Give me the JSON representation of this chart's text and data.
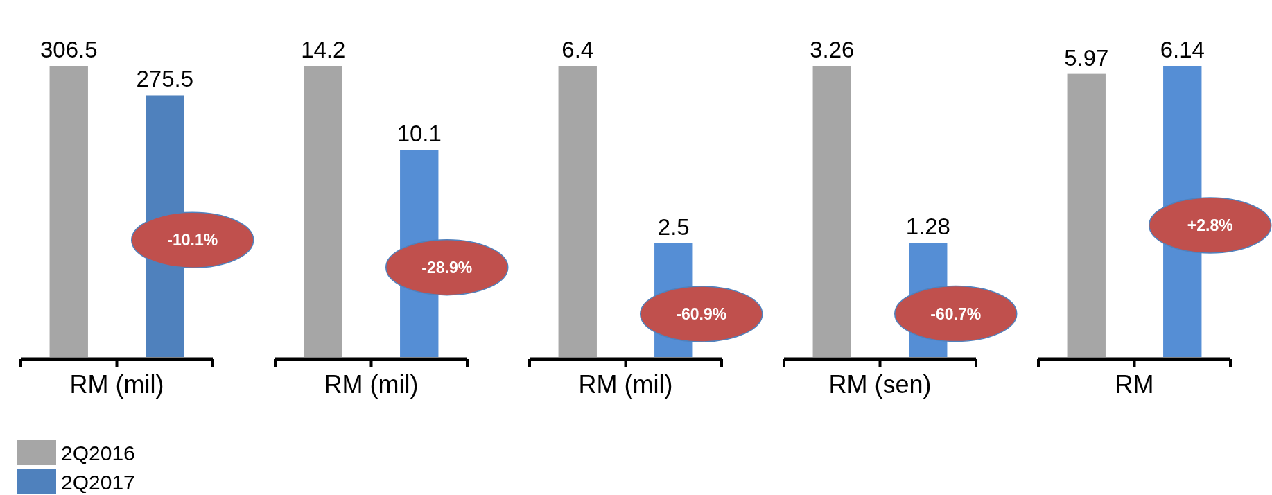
{
  "chart_data": [
    {
      "type": "bar",
      "stacked": true,
      "categories": [
        null,
        null
      ],
      "series": [
        {
          "name": "2Q2016",
          "color": "#a6a6a6",
          "values": [
            306.5,
            null
          ]
        },
        {
          "name": "2Q2017",
          "color": "#4f81bd",
          "values": [
            null,
            275.5
          ]
        }
      ],
      "data_labels": true,
      "xlabel": "RM (mil)",
      "annotations": [
        "-10.1%"
      ],
      "legend": "bottom left"
    },
    {
      "type": "bar",
      "stacked": true,
      "categories": [
        null,
        null
      ],
      "series": [
        {
          "color": "#a6a6a6",
          "values": [
            14.2,
            null
          ]
        },
        {
          "color": "#558ed5",
          "values": [
            null,
            10.1
          ]
        }
      ],
      "data_labels": true,
      "xlabel": "RM (mil)",
      "annotations": [
        "-28.9%"
      ]
    },
    {
      "type": "bar",
      "stacked": true,
      "categories": [
        null,
        null
      ],
      "series": [
        {
          "color": "#a6a6a6",
          "values": [
            6.4,
            null
          ]
        },
        {
          "color": "#558ed5",
          "values": [
            null,
            2.5
          ]
        }
      ],
      "data_labels": true,
      "xlabel": "RM (mil)",
      "annotations": [
        "-60.9%"
      ]
    },
    {
      "type": "bar",
      "stacked": true,
      "categories": [
        null,
        null
      ],
      "series": [
        {
          "color": "#a6a6a6",
          "values": [
            3.26,
            null
          ]
        },
        {
          "color": "#558ed5",
          "values": [
            null,
            1.28
          ]
        }
      ],
      "data_labels": true,
      "xlabel": "RM (sen)",
      "annotations": [
        "-60.7%"
      ]
    },
    {
      "type": "bar",
      "stacked": true,
      "categories": [
        null,
        null
      ],
      "series": [
        {
          "color": "#a6a6a6",
          "values": [
            5.97,
            null
          ]
        },
        {
          "color": "#558ed5",
          "values": [
            null,
            6.14
          ]
        }
      ],
      "data_labels": true,
      "xlabel": "RM",
      "annotations": [
        "+2.8%"
      ]
    }
  ]
}
